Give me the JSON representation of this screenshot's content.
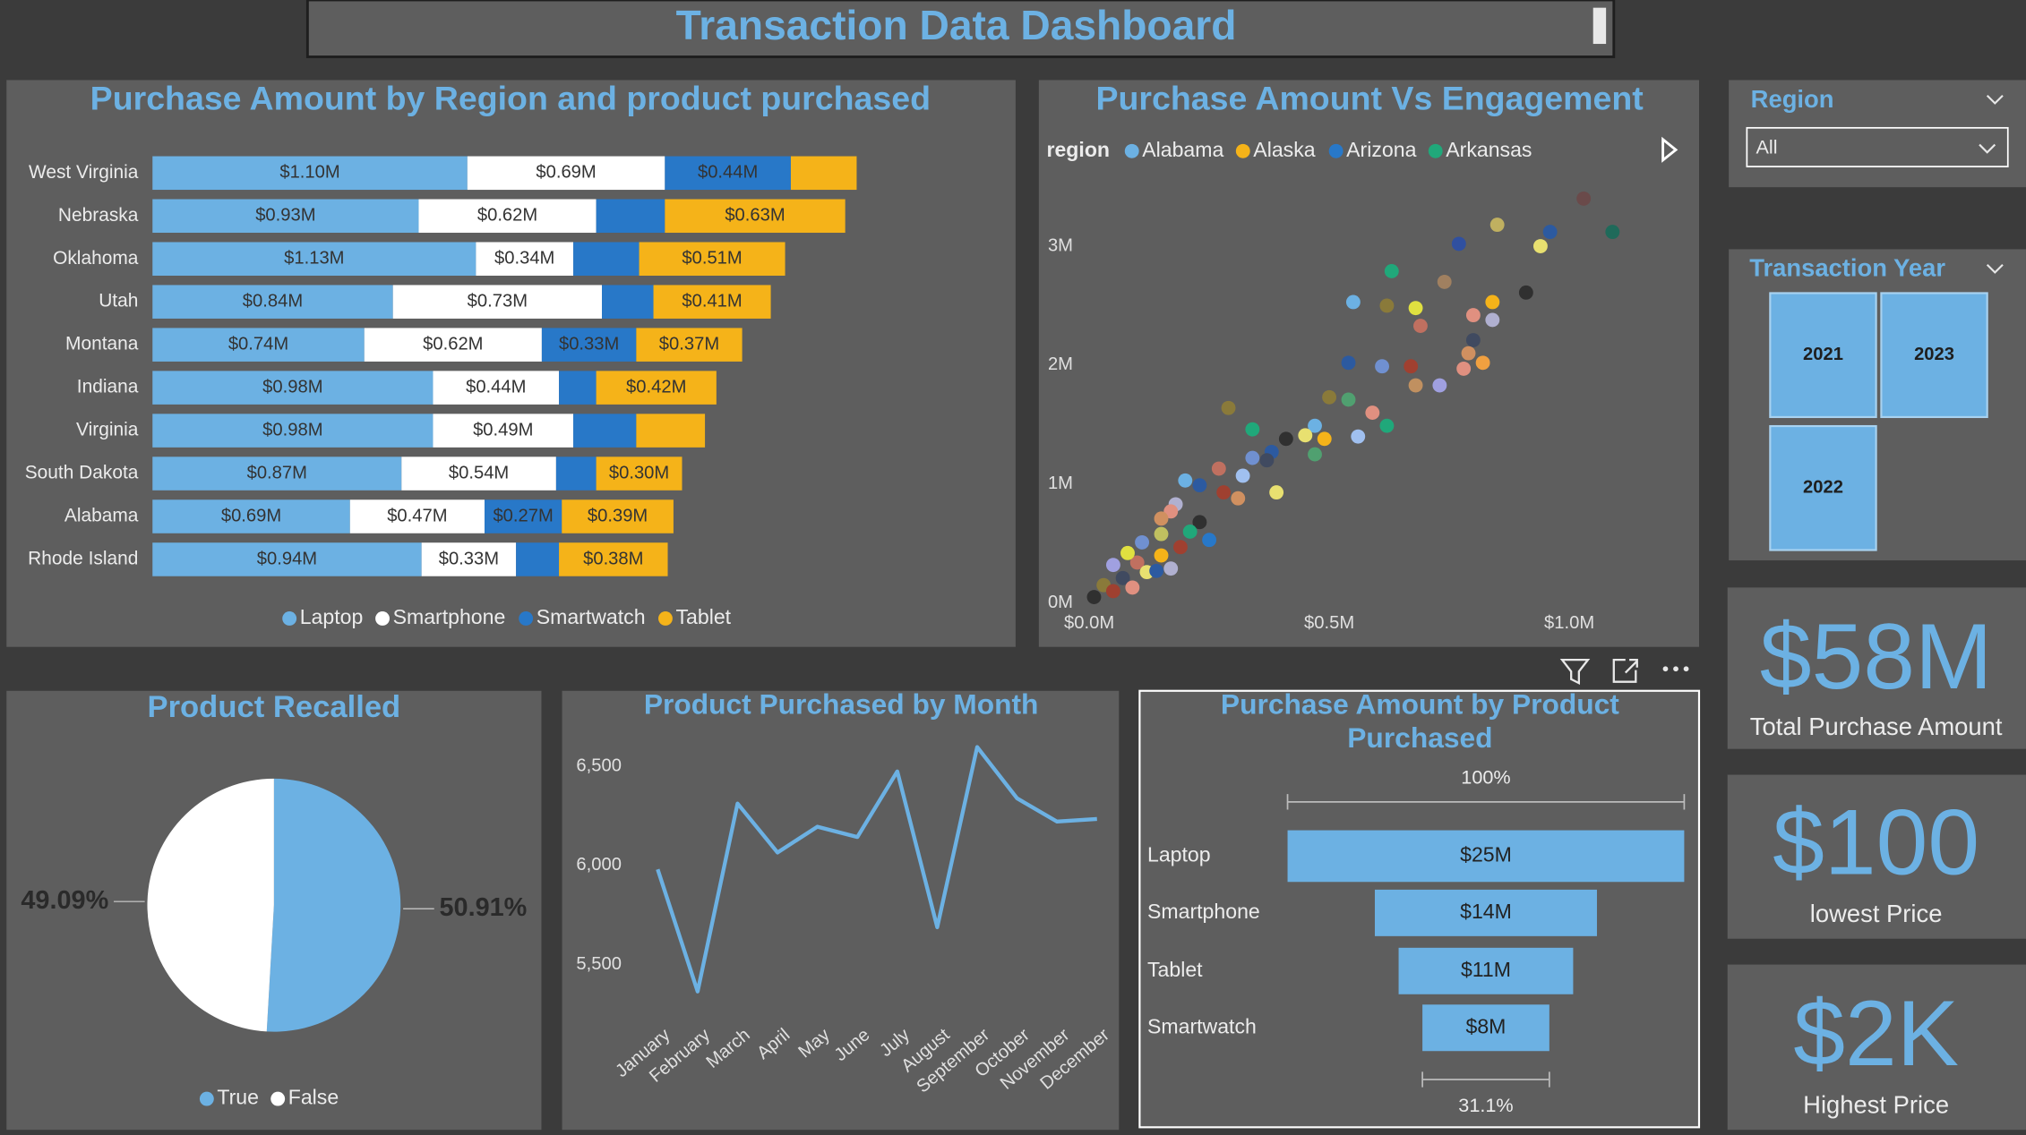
{
  "title": "Transaction Data Dashboard",
  "chart_data": [
    {
      "type": "bar",
      "orientation": "horizontal",
      "stacked": true,
      "title": "Purchase Amount by Region and product purchased",
      "categories": [
        "West Virginia",
        "Nebraska",
        "Oklahoma",
        "Utah",
        "Montana",
        "Indiana",
        "Virginia",
        "South Dakota",
        "Alabama",
        "Rhode Island"
      ],
      "series": [
        {
          "name": "Laptop",
          "color": "#6cb1e3",
          "values": [
            1.1,
            0.93,
            1.13,
            0.84,
            0.74,
            0.98,
            0.98,
            0.87,
            0.69,
            0.94
          ],
          "value_labels": [
            "$1.10M",
            "$0.93M",
            "$1.13M",
            "$0.84M",
            "$0.74M",
            "$0.98M",
            "$0.98M",
            "$0.87M",
            "$0.69M",
            "$0.94M"
          ]
        },
        {
          "name": "Smartphone",
          "color": "#ffffff",
          "values": [
            0.69,
            0.62,
            0.34,
            0.73,
            0.62,
            0.44,
            0.49,
            0.54,
            0.47,
            0.33
          ],
          "value_labels": [
            "$0.69M",
            "$0.62M",
            "$0.34M",
            "$0.73M",
            "$0.62M",
            "$0.44M",
            "$0.49M",
            "$0.54M",
            "$0.47M",
            "$0.33M"
          ]
        },
        {
          "name": "Smartwatch",
          "color": "#2878c8",
          "values": [
            0.44,
            0.24,
            0.23,
            0.18,
            0.33,
            0.13,
            0.22,
            0.14,
            0.27,
            0.15
          ],
          "value_labels": [
            "$0.44M",
            null,
            null,
            null,
            "$0.33M",
            null,
            null,
            null,
            "$0.27M",
            null
          ]
        },
        {
          "name": "Tablet",
          "color": "#f5b319",
          "values": [
            0.23,
            0.63,
            0.51,
            0.41,
            0.37,
            0.42,
            0.24,
            0.3,
            0.39,
            0.38
          ],
          "value_labels": [
            null,
            "$0.63M",
            "$0.51M",
            "$0.41M",
            "$0.37M",
            "$0.42M",
            null,
            "$0.30M",
            "$0.39M",
            "$0.38M"
          ]
        }
      ]
    },
    {
      "type": "scatter",
      "title": "Purchase Amount Vs Engagement",
      "legend_title": "region",
      "legend": [
        {
          "name": "Alabama",
          "color": "#6cb1e3"
        },
        {
          "name": "Alaska",
          "color": "#f5b319"
        },
        {
          "name": "Arizona",
          "color": "#2878c8"
        },
        {
          "name": "Arkansas",
          "color": "#20a87a"
        }
      ],
      "xlim": [
        0,
        1.23
      ],
      "ylim": [
        0,
        3.55
      ],
      "xticks": [
        {
          "value": 0,
          "label": "$0.0M"
        },
        {
          "value": 0.5,
          "label": "$0.5M"
        },
        {
          "value": 1,
          "label": "$1.0M"
        }
      ],
      "yticks": [
        {
          "value": 0,
          "label": "0M"
        },
        {
          "value": 1,
          "label": "1M"
        },
        {
          "value": 2,
          "label": "2M"
        },
        {
          "value": 3,
          "label": "3M"
        }
      ],
      "points": [
        {
          "x": 1.03,
          "y": 3.4,
          "color": "#6a4a4a"
        },
        {
          "x": 1.09,
          "y": 3.12,
          "color": "#1f6a5a"
        },
        {
          "x": 0.96,
          "y": 3.12,
          "color": "#2c5aa0"
        },
        {
          "x": 0.85,
          "y": 3.18,
          "color": "#c0b060"
        },
        {
          "x": 0.77,
          "y": 3.02,
          "color": "#3050a0"
        },
        {
          "x": 0.94,
          "y": 3.0,
          "color": "#e8e070"
        },
        {
          "x": 0.63,
          "y": 2.79,
          "color": "#20a87a"
        },
        {
          "x": 0.74,
          "y": 2.7,
          "color": "#a08060"
        },
        {
          "x": 0.91,
          "y": 2.61,
          "color": "#303030"
        },
        {
          "x": 0.55,
          "y": 2.53,
          "color": "#6cb1e3"
        },
        {
          "x": 0.62,
          "y": 2.5,
          "color": "#8a7a3a"
        },
        {
          "x": 0.68,
          "y": 2.48,
          "color": "#e0e040"
        },
        {
          "x": 0.8,
          "y": 2.42,
          "color": "#e09080"
        },
        {
          "x": 0.84,
          "y": 2.53,
          "color": "#f5b319"
        },
        {
          "x": 0.84,
          "y": 2.38,
          "color": "#b0b0d0"
        },
        {
          "x": 0.69,
          "y": 2.33,
          "color": "#c07060"
        },
        {
          "x": 0.8,
          "y": 2.21,
          "color": "#404a60"
        },
        {
          "x": 0.54,
          "y": 2.02,
          "color": "#2c5aa0"
        },
        {
          "x": 0.61,
          "y": 1.99,
          "color": "#7090d0"
        },
        {
          "x": 0.67,
          "y": 1.99,
          "color": "#a04030"
        },
        {
          "x": 0.79,
          "y": 2.1,
          "color": "#d09060"
        },
        {
          "x": 0.82,
          "y": 2.02,
          "color": "#f0a040"
        },
        {
          "x": 0.78,
          "y": 1.97,
          "color": "#e09080"
        },
        {
          "x": 0.73,
          "y": 1.83,
          "color": "#a0a0e0"
        },
        {
          "x": 0.68,
          "y": 1.83,
          "color": "#c09060"
        },
        {
          "x": 0.5,
          "y": 1.73,
          "color": "#8a7a3a"
        },
        {
          "x": 0.54,
          "y": 1.71,
          "color": "#50a070"
        },
        {
          "x": 0.59,
          "y": 1.6,
          "color": "#e09080"
        },
        {
          "x": 0.62,
          "y": 1.49,
          "color": "#20a87a"
        },
        {
          "x": 0.56,
          "y": 1.4,
          "color": "#a0c0f0"
        },
        {
          "x": 0.29,
          "y": 1.64,
          "color": "#8a7a3a"
        },
        {
          "x": 0.47,
          "y": 1.49,
          "color": "#6cb1e3"
        },
        {
          "x": 0.45,
          "y": 1.41,
          "color": "#e8e070"
        },
        {
          "x": 0.41,
          "y": 1.38,
          "color": "#303030"
        },
        {
          "x": 0.49,
          "y": 1.38,
          "color": "#f5b319"
        },
        {
          "x": 0.34,
          "y": 1.46,
          "color": "#20a87a"
        },
        {
          "x": 0.38,
          "y": 1.27,
          "color": "#2c5aa0"
        },
        {
          "x": 0.47,
          "y": 1.25,
          "color": "#50a070"
        },
        {
          "x": 0.37,
          "y": 1.2,
          "color": "#404a60"
        },
        {
          "x": 0.34,
          "y": 1.22,
          "color": "#7090d0"
        },
        {
          "x": 0.27,
          "y": 1.13,
          "color": "#c07060"
        },
        {
          "x": 0.32,
          "y": 1.07,
          "color": "#a0c0f0"
        },
        {
          "x": 0.23,
          "y": 0.99,
          "color": "#2c5aa0"
        },
        {
          "x": 0.39,
          "y": 0.93,
          "color": "#e8e070"
        },
        {
          "x": 0.28,
          "y": 0.93,
          "color": "#9f4030"
        },
        {
          "x": 0.2,
          "y": 1.03,
          "color": "#6cb1e3"
        },
        {
          "x": 0.31,
          "y": 0.88,
          "color": "#d09060"
        },
        {
          "x": 0.18,
          "y": 0.83,
          "color": "#b0b0d0"
        },
        {
          "x": 0.17,
          "y": 0.77,
          "color": "#e09080"
        },
        {
          "x": 0.23,
          "y": 0.68,
          "color": "#303030"
        },
        {
          "x": 0.25,
          "y": 0.53,
          "color": "#2878c8"
        },
        {
          "x": 0.15,
          "y": 0.58,
          "color": "#c0c060"
        },
        {
          "x": 0.19,
          "y": 0.47,
          "color": "#a04030"
        },
        {
          "x": 0.11,
          "y": 0.51,
          "color": "#7090d0"
        },
        {
          "x": 0.15,
          "y": 0.4,
          "color": "#f5b319"
        },
        {
          "x": 0.1,
          "y": 0.34,
          "color": "#c07060"
        },
        {
          "x": 0.05,
          "y": 0.32,
          "color": "#a0a0e0"
        },
        {
          "x": 0.12,
          "y": 0.26,
          "color": "#e8e070"
        },
        {
          "x": 0.07,
          "y": 0.21,
          "color": "#404a60"
        },
        {
          "x": 0.03,
          "y": 0.15,
          "color": "#8a7a3a"
        },
        {
          "x": 0.09,
          "y": 0.13,
          "color": "#e09080"
        },
        {
          "x": 0.01,
          "y": 0.05,
          "color": "#303030"
        },
        {
          "x": 0.05,
          "y": 0.1,
          "color": "#9f4030"
        },
        {
          "x": 0.14,
          "y": 0.27,
          "color": "#2c5aa0"
        },
        {
          "x": 0.17,
          "y": 0.29,
          "color": "#b0b0d0"
        },
        {
          "x": 0.21,
          "y": 0.6,
          "color": "#20a87a"
        },
        {
          "x": 0.15,
          "y": 0.71,
          "color": "#d09060"
        },
        {
          "x": 0.08,
          "y": 0.42,
          "color": "#e0e040"
        }
      ]
    },
    {
      "type": "pie",
      "title": "Product Recalled",
      "categories": [
        "True",
        "False"
      ],
      "values": [
        50.91,
        49.09
      ],
      "value_labels": [
        "50.91%",
        "49.09%"
      ],
      "colors": [
        "#6cb1e3",
        "#ffffff"
      ]
    },
    {
      "type": "line",
      "title": "Product Purchased by Month",
      "color": "#6cb1e3",
      "categories": [
        "January",
        "February",
        "March",
        "April",
        "May",
        "June",
        "July",
        "August",
        "September",
        "October",
        "November",
        "December"
      ],
      "values": [
        5980,
        5364,
        6312,
        6065,
        6195,
        6143,
        6474,
        5688,
        6597,
        6338,
        6221,
        6234
      ],
      "ylim": [
        5350,
        6620
      ],
      "yticks": [
        {
          "value": 5500,
          "label": "5,500"
        },
        {
          "value": 6000,
          "label": "6,000"
        },
        {
          "value": 6500,
          "label": "6,500"
        }
      ]
    },
    {
      "type": "funnel",
      "title": "Purchase Amount by Product Purchased",
      "color": "#6cb1e3",
      "categories": [
        "Laptop",
        "Smartphone",
        "Tablet",
        "Smartwatch"
      ],
      "values": [
        25,
        14,
        11,
        8
      ],
      "value_labels": [
        "$25M",
        "$14M",
        "$11M",
        "$8M"
      ],
      "top_label": "100%",
      "bottom_label": "31.1%"
    }
  ],
  "slicers": [
    {
      "title": "Region",
      "selected": "All"
    },
    {
      "title": "Transaction Year",
      "options": [
        2021,
        2023,
        2022
      ]
    }
  ],
  "cards": [
    {
      "value": "$58M",
      "label": "Total Purchase Amount"
    },
    {
      "value": "$100",
      "label": "lowest Price"
    },
    {
      "value": "$2K",
      "label": "Highest Price"
    }
  ]
}
